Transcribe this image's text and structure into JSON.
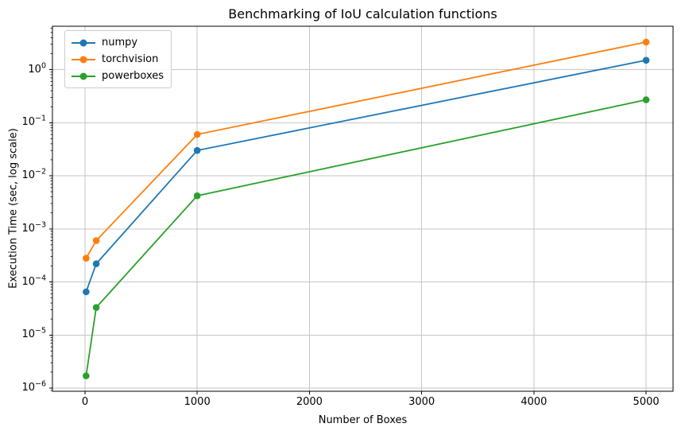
{
  "figure": {
    "title": "Benchmarking of IoU calculation functions",
    "xlabel": "Number of Boxes",
    "ylabel": "Execution Time (sec, log scale)"
  },
  "chart_data": {
    "type": "line",
    "title": "Benchmarking of IoU calculation functions",
    "xlabel": "Number of Boxes",
    "ylabel": "Execution Time (sec, log scale)",
    "y_scale": "log",
    "x": [
      10,
      100,
      1000,
      5000
    ],
    "series": [
      {
        "name": "numpy",
        "color": "#1f77b4",
        "values": [
          6.5e-05,
          0.00022,
          0.03,
          1.5
        ]
      },
      {
        "name": "torchvision",
        "color": "#ff7f0e",
        "values": [
          0.00028,
          0.0006,
          0.06,
          3.3
        ]
      },
      {
        "name": "powerboxes",
        "color": "#2ca02c",
        "values": [
          1.7e-06,
          3.3e-05,
          0.0042,
          0.27
        ]
      }
    ],
    "x_ticks": [
      0,
      1000,
      2000,
      3000,
      4000,
      5000
    ],
    "y_tick_exponents": [
      0,
      -1,
      -2,
      -3,
      -4,
      -5,
      -6
    ],
    "xlim": [
      -290,
      5240
    ],
    "ylim_exponents": [
      -6.06,
      0.817
    ],
    "grid": true,
    "legend": {
      "position": "upper-left",
      "entries": [
        "numpy",
        "torchvision",
        "powerboxes"
      ]
    },
    "marker": "circle",
    "grid_color": "#c6c6c6",
    "spine_color": "#000000",
    "minus_sign": "−"
  }
}
